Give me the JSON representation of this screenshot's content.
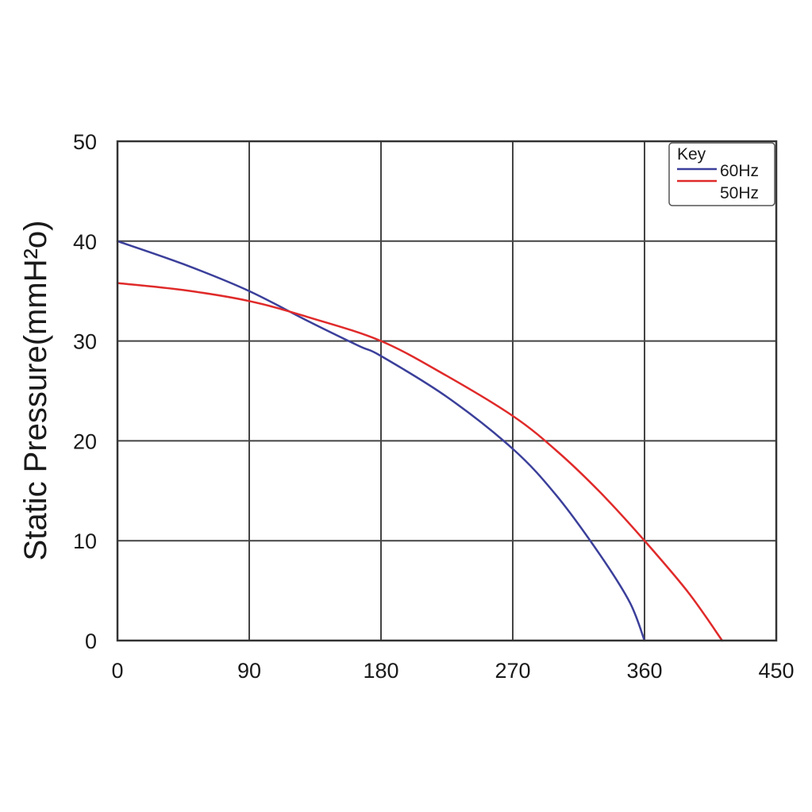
{
  "chart_data": {
    "type": "line",
    "title": "",
    "xlabel": "",
    "ylabel": "Static Pressure(mmH²o)",
    "xlim": [
      0,
      450
    ],
    "ylim": [
      0,
      50
    ],
    "x_ticks": [
      0,
      90,
      180,
      270,
      360,
      450
    ],
    "y_ticks": [
      0,
      10,
      20,
      30,
      40,
      50
    ],
    "x_tick_labels": [
      "0",
      "90",
      "180",
      "270",
      "360",
      "450"
    ],
    "y_tick_labels": [
      "0",
      "10",
      "20",
      "30",
      "40",
      "50"
    ],
    "grid": true,
    "legend": {
      "title": "Key",
      "placement": "top-right"
    },
    "series": [
      {
        "name": "60Hz",
        "color": "#3b3f9a",
        "x": [
          0,
          45,
          90,
          130,
          165,
          180,
          225,
          270,
          300,
          330,
          350,
          360
        ],
        "y": [
          40,
          37.7,
          35.0,
          32.0,
          29.5,
          28.5,
          24.4,
          19.2,
          14.5,
          8.5,
          3.8,
          0
        ]
      },
      {
        "name": "50Hz",
        "color": "#e02a2a",
        "x": [
          0,
          45,
          90,
          130,
          180,
          225,
          270,
          300,
          330,
          360,
          390,
          413
        ],
        "y": [
          35.8,
          35.1,
          34.0,
          32.4,
          30.0,
          26.5,
          22.5,
          19.0,
          14.8,
          10.0,
          4.8,
          0
        ]
      }
    ]
  }
}
